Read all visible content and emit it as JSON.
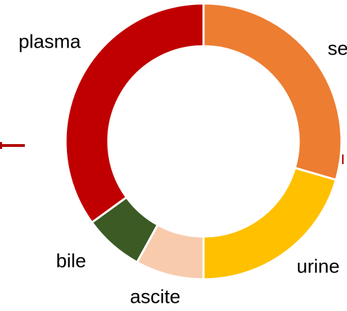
{
  "chart_data": {
    "type": "donut",
    "categories": [
      "se",
      "urine",
      "ascite",
      "bile",
      "plasma"
    ],
    "values": [
      29.5,
      20.5,
      8,
      7,
      35
    ],
    "colors": [
      "#ED7D31",
      "#FFC000",
      "#F8CBAD",
      "#3B5A24",
      "#C00000"
    ]
  }
}
